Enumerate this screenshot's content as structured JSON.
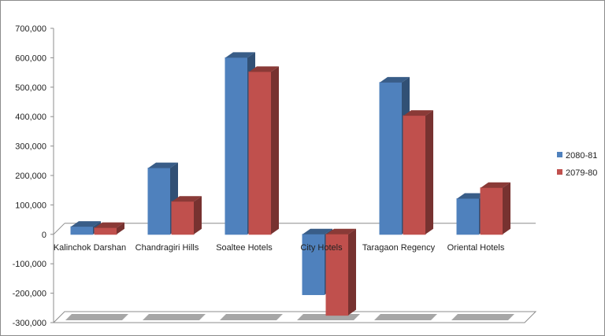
{
  "chart_data": {
    "type": "bar",
    "categories": [
      "Kalinchok Darshan",
      "Chandragiri Hills",
      "Soaltee Hotels",
      "City Hotels",
      "Taragaon Regency",
      "Oriental Hotels"
    ],
    "series": [
      {
        "name": "2080-81",
        "color": "#4F81BD",
        "values": [
          26000,
          225000,
          600000,
          -205000,
          516000,
          121000
        ]
      },
      {
        "name": "2079-80",
        "color": "#C0504D",
        "values": [
          22000,
          111000,
          552000,
          -275000,
          403000,
          158000
        ]
      }
    ],
    "y_ticks": [
      "700,000",
      "600,000",
      "500,000",
      "400,000",
      "300,000",
      "200,000",
      "100,000",
      "0",
      "-100,000",
      "-200,000",
      "-300,000"
    ],
    "ylim": [
      -300000,
      700000
    ],
    "legend_position": "right",
    "grid": false,
    "title": "",
    "xlabel": "",
    "ylabel": ""
  }
}
